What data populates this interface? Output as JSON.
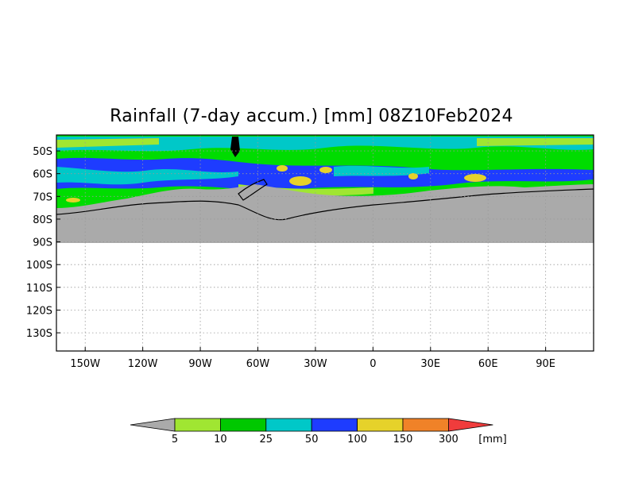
{
  "title": "Rainfall (7-day accum.) [mm] 08Z10Feb2024",
  "map": {
    "lon_range": [
      -165,
      115
    ],
    "lat_range": [
      -138,
      -43
    ],
    "data_region_lat": [
      -90,
      -43
    ],
    "lat_ticks": [
      "50S",
      "60S",
      "70S",
      "80S",
      "90S",
      "100S",
      "110S",
      "120S",
      "130S"
    ],
    "lon_ticks": [
      "150W",
      "120W",
      "90W",
      "60W",
      "30W",
      "0",
      "30E",
      "60E",
      "90E"
    ],
    "gridlines": "dotted",
    "land_mask_color": "#aaaaaa"
  },
  "colorbar": {
    "labels": [
      "5",
      "10",
      "25",
      "50",
      "100",
      "150",
      "300"
    ],
    "unit": "[mm]",
    "under_color": "#aaaaaa",
    "colors": [
      "#a0e632",
      "#00c800",
      "#00c8c8",
      "#1e3cff",
      "#e6d22a",
      "#f08228",
      "#f03c3c"
    ],
    "over_color": "#f03c3c"
  },
  "colors": {
    "background_precip": "#00dc00",
    "low": "#a0e632",
    "mid": "#00c8c8",
    "high": "#1e3cff",
    "very_high": "#e6d22a",
    "land": "#aaaaaa"
  }
}
